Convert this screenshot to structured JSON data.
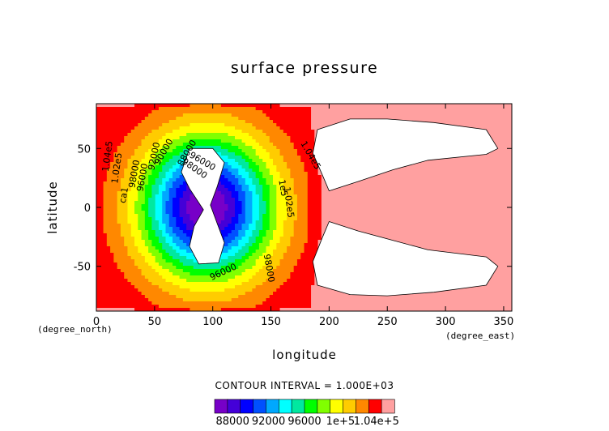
{
  "chart_data": {
    "type": "heatmap",
    "title": "surface pressure",
    "xlabel": "longitude",
    "ylabel": "latitude",
    "x_unit": "(degree_east)",
    "y_unit": "(degree_north)",
    "xlim": [
      0,
      357
    ],
    "ylim": [
      -88,
      88
    ],
    "x_ticks": [
      0,
      50,
      100,
      150,
      200,
      250,
      300,
      350
    ],
    "y_ticks": [
      -50,
      0,
      50
    ],
    "contour_interval_text": "CONTOUR INTERVAL = 1.000E+03",
    "levels": [
      86000,
      87000,
      88000,
      89000,
      90000,
      91000,
      92000,
      93000,
      94000,
      95000,
      96000,
      97000,
      98000,
      99000,
      100000,
      101000,
      102000,
      103000,
      104000,
      105000
    ],
    "colorbar": {
      "colors": [
        "#7700c8",
        "#4400d8",
        "#0000ff",
        "#0050ff",
        "#00a8ff",
        "#00ffff",
        "#00e8a0",
        "#00ff00",
        "#80ff00",
        "#ffff00",
        "#ffcc00",
        "#ff8800",
        "#ff0000",
        "#ffa0a0"
      ],
      "labels": [
        "88000",
        "92000",
        "96000",
        "1e+5",
        "1.04e+5"
      ],
      "label_values": [
        88000,
        92000,
        96000,
        100000,
        104000
      ]
    },
    "missing_regions": [
      {
        "name": "west-lobe",
        "points": [
          [
            80,
            50
          ],
          [
            100,
            50
          ],
          [
            110,
            38
          ],
          [
            104,
            18
          ],
          [
            98,
            2
          ],
          [
            104,
            -14
          ],
          [
            110,
            -30
          ],
          [
            105,
            -47
          ],
          [
            88,
            -48
          ],
          [
            80,
            -33
          ],
          [
            84,
            -16
          ],
          [
            92,
            -2
          ],
          [
            80,
            16
          ],
          [
            73,
            30
          ]
        ]
      },
      {
        "name": "east-lobe-north",
        "points": [
          [
            200,
            14
          ],
          [
            225,
            22
          ],
          [
            255,
            32
          ],
          [
            285,
            40
          ],
          [
            335,
            45
          ],
          [
            345,
            50
          ],
          [
            335,
            66
          ],
          [
            290,
            72
          ],
          [
            250,
            75
          ],
          [
            218,
            75
          ],
          [
            190,
            66
          ],
          [
            186,
            46
          ],
          [
            194,
            28
          ]
        ]
      },
      {
        "name": "east-lobe-south",
        "points": [
          [
            200,
            -12
          ],
          [
            225,
            -20
          ],
          [
            255,
            -28
          ],
          [
            285,
            -36
          ],
          [
            335,
            -42
          ],
          [
            345,
            -50
          ],
          [
            335,
            -66
          ],
          [
            290,
            -72
          ],
          [
            250,
            -75
          ],
          [
            218,
            -74
          ],
          [
            190,
            -66
          ],
          [
            186,
            -46
          ],
          [
            194,
            -26
          ]
        ]
      }
    ],
    "contour_labels": [
      {
        "text": "1.04e5",
        "x": 12,
        "y": 43,
        "angle": -82
      },
      {
        "text": "1.02e5",
        "x": 20,
        "y": 33,
        "angle": -82
      },
      {
        "text": "ca1",
        "x": 26,
        "y": 10,
        "angle": -80
      },
      {
        "text": "98000",
        "x": 35,
        "y": 28,
        "angle": -80
      },
      {
        "text": "96000",
        "x": 42,
        "y": 25,
        "angle": -80
      },
      {
        "text": "92000",
        "x": 52,
        "y": 43,
        "angle": -78
      },
      {
        "text": "90000",
        "x": 60,
        "y": 46,
        "angle": -60
      },
      {
        "text": "88000",
        "x": 80,
        "y": 45,
        "angle": -60
      },
      {
        "text": "96000",
        "x": 90,
        "y": 37,
        "angle": 30
      },
      {
        "text": "98000",
        "x": 83,
        "y": 31,
        "angle": 35
      },
      {
        "text": "1.04e5",
        "x": 182,
        "y": 43,
        "angle": 60
      },
      {
        "text": "1e5",
        "x": 158,
        "y": 16,
        "angle": 80
      },
      {
        "text": "1.02e5",
        "x": 163,
        "y": 4,
        "angle": 82
      },
      {
        "text": "96000",
        "x": 110,
        "y": -57,
        "angle": -25
      },
      {
        "text": "98000",
        "x": 146,
        "y": -52,
        "angle": 80
      }
    ]
  }
}
